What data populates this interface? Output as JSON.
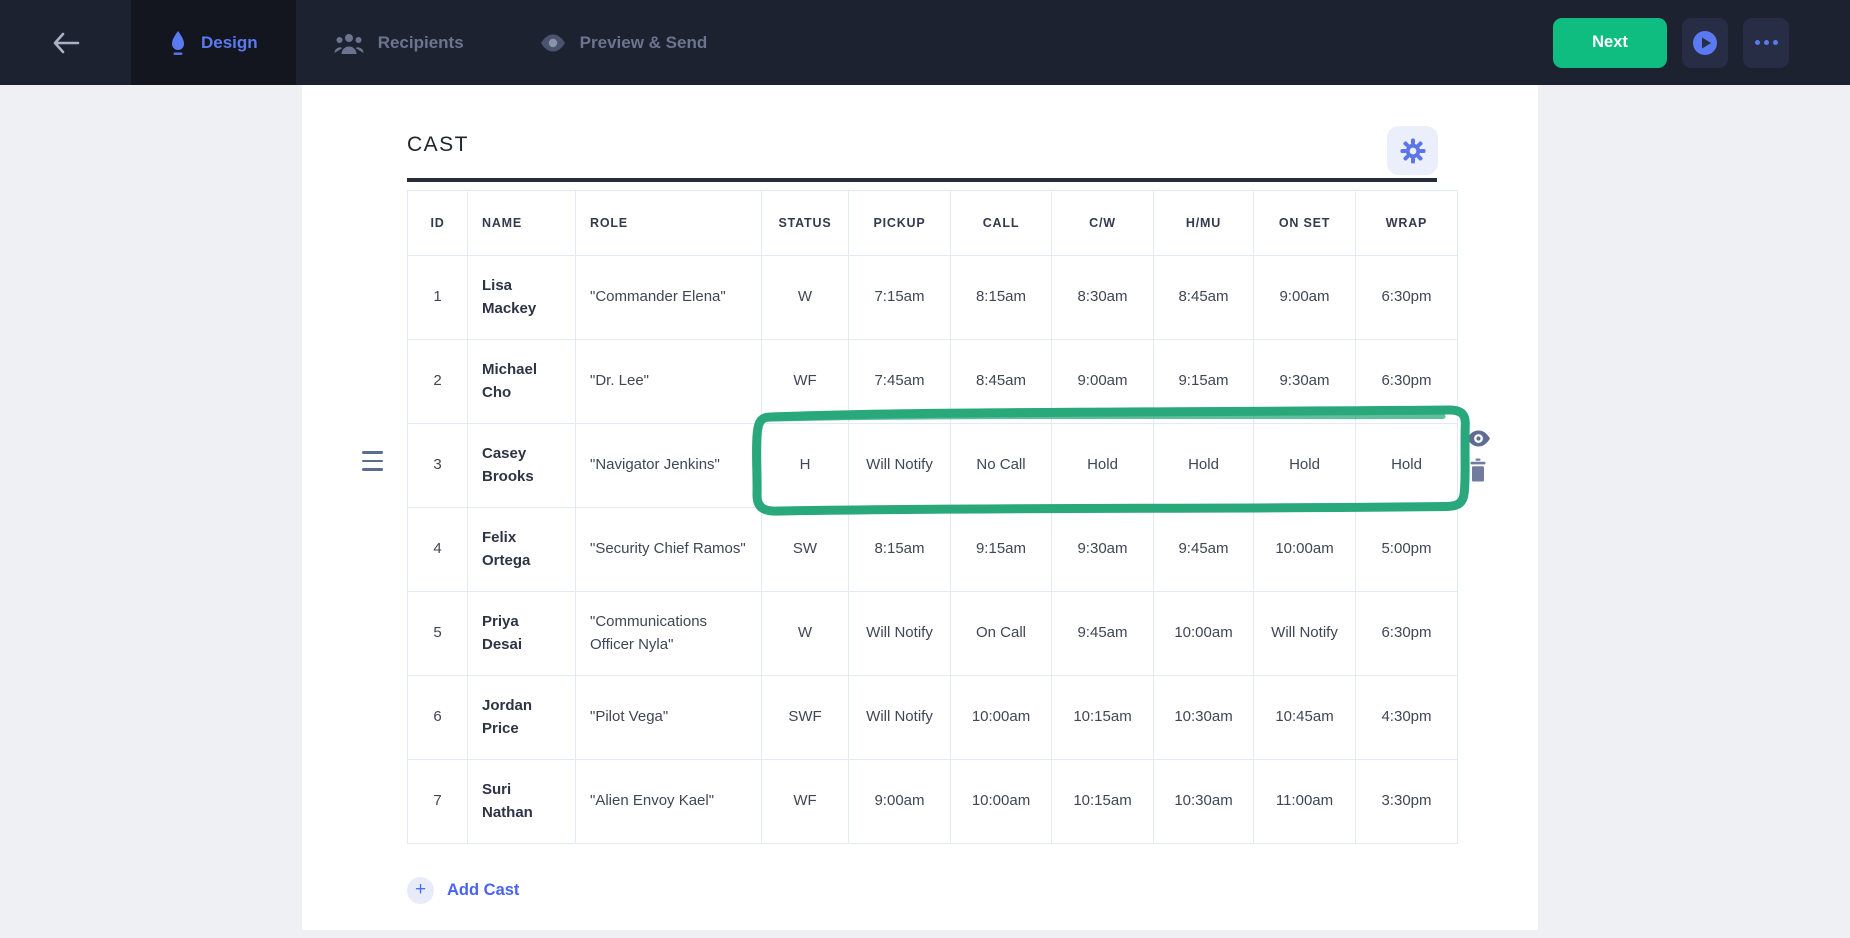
{
  "navbar": {
    "tabs": [
      {
        "label": "Design",
        "active": true
      },
      {
        "label": "Recipients",
        "active": false
      },
      {
        "label": "Preview & Send",
        "active": false
      }
    ],
    "next_label": "Next"
  },
  "icons": {
    "plus_glyph": "+"
  },
  "section": {
    "title": "CAST",
    "add_cast_label": "Add Cast"
  },
  "table": {
    "columns": [
      "ID",
      "NAME",
      "ROLE",
      "STATUS",
      "PICKUP",
      "CALL",
      "C/W",
      "H/MU",
      "ON SET",
      "WRAP"
    ],
    "rows": [
      {
        "id": "1",
        "name": "Lisa Mackey",
        "role": "\"Commander Elena\"",
        "status": "W",
        "pickup": "7:15am",
        "call": "8:15am",
        "cw": "8:30am",
        "hmu": "8:45am",
        "on_set": "9:00am",
        "wrap": "6:30pm"
      },
      {
        "id": "2",
        "name": "Michael Cho",
        "role": "\"Dr. Lee\"",
        "status": "WF",
        "pickup": "7:45am",
        "call": "8:45am",
        "cw": "9:00am",
        "hmu": "9:15am",
        "on_set": "9:30am",
        "wrap": "6:30pm"
      },
      {
        "id": "3",
        "name": "Casey Brooks",
        "role": "\"Navigator Jenkins\"",
        "status": "H",
        "pickup": "Will Notify",
        "call": "No Call",
        "cw": "Hold",
        "hmu": "Hold",
        "on_set": "Hold",
        "wrap": "Hold"
      },
      {
        "id": "4",
        "name": "Felix Ortega",
        "role": "\"Security Chief Ramos\"",
        "status": "SW",
        "pickup": "8:15am",
        "call": "9:15am",
        "cw": "9:30am",
        "hmu": "9:45am",
        "on_set": "10:00am",
        "wrap": "5:00pm"
      },
      {
        "id": "5",
        "name": "Priya Desai",
        "role": "\"Communications Officer Nyla\"",
        "status": "W",
        "pickup": "Will Notify",
        "call": "On Call",
        "cw": "9:45am",
        "hmu": "10:00am",
        "on_set": "Will Notify",
        "wrap": "6:30pm"
      },
      {
        "id": "6",
        "name": "Jordan Price",
        "role": "\"Pilot Vega\"",
        "status": "SWF",
        "pickup": "Will Notify",
        "call": "10:00am",
        "cw": "10:15am",
        "hmu": "10:30am",
        "on_set": "10:45am",
        "wrap": "4:30pm"
      },
      {
        "id": "7",
        "name": "Suri Nathan",
        "role": "\"Alien Envoy Kael\"",
        "status": "WF",
        "pickup": "9:00am",
        "call": "10:00am",
        "cw": "10:15am",
        "hmu": "10:30am",
        "on_set": "11:00am",
        "wrap": "3:30pm"
      }
    ]
  },
  "colors": {
    "accent_blue": "#4c6ef5",
    "nav_active_blue": "#5b79f0",
    "next_green": "#10bd81",
    "annotation_green": "#29a87c",
    "navbar_bg": "#1d2230",
    "slate_icon": "#5f6d94"
  }
}
